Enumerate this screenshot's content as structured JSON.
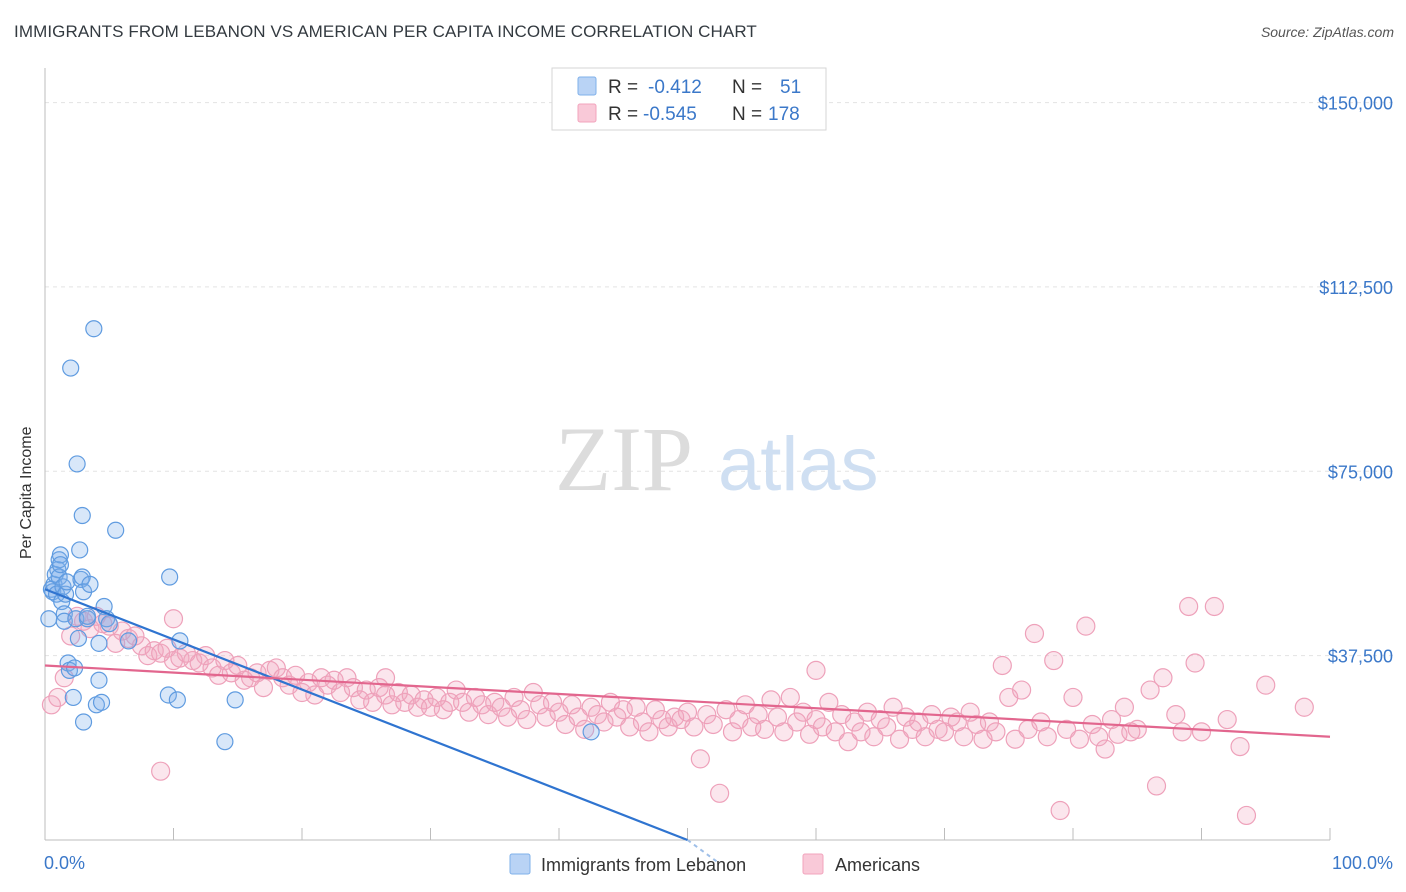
{
  "title": "IMMIGRANTS FROM LEBANON VS AMERICAN PER CAPITA INCOME CORRELATION CHART",
  "source": "Source: ZipAtlas.com",
  "watermark": {
    "zip": "ZIP",
    "atlas": "atlas"
  },
  "colors": {
    "blue": "#7fb0ea",
    "blue_line": "#2f74d0",
    "pink": "#f2a4bd",
    "pink_line": "#e2668e",
    "axis_text": "#3b78c9"
  },
  "legend_box": [
    {
      "r_label": "R =",
      "r_value": "-0.412",
      "n_label": "N =",
      "n_value": "51"
    },
    {
      "r_label": "R =",
      "r_value": "-0.545",
      "n_label": "N =",
      "n_value": "178"
    }
  ],
  "chart_data": {
    "type": "scatter",
    "title": "IMMIGRANTS FROM LEBANON VS AMERICAN PER CAPITA INCOME CORRELATION CHART",
    "xlabel": "",
    "ylabel": "Per Capita Income",
    "xlim": [
      0,
      100
    ],
    "ylim": [
      0,
      155000
    ],
    "x_tick_labels": [
      "0.0%",
      "100.0%"
    ],
    "y_ticks": [
      37500,
      75000,
      112500,
      150000
    ],
    "y_tick_labels": [
      "$37,500",
      "$75,000",
      "$112,500",
      "$150,000"
    ],
    "grid": true,
    "legend_position": "bottom",
    "series": [
      {
        "name": "Immigrants from Lebanon",
        "color": "#7fb0ea",
        "trend": {
          "x": [
            0,
            50
          ],
          "y": [
            51000,
            0
          ]
        },
        "points": [
          [
            0.3,
            45000
          ],
          [
            0.5,
            51000
          ],
          [
            0.6,
            50500
          ],
          [
            0.7,
            52000
          ],
          [
            0.8,
            54000
          ],
          [
            0.9,
            50000
          ],
          [
            1.0,
            55000
          ],
          [
            1.1,
            57000
          ],
          [
            1.1,
            53500
          ],
          [
            1.2,
            58000
          ],
          [
            1.2,
            56000
          ],
          [
            1.3,
            48500
          ],
          [
            1.4,
            51500
          ],
          [
            1.5,
            46000
          ],
          [
            1.5,
            44500
          ],
          [
            1.6,
            50000
          ],
          [
            1.7,
            52500
          ],
          [
            1.8,
            36000
          ],
          [
            1.9,
            34500
          ],
          [
            2.0,
            96000
          ],
          [
            2.2,
            29000
          ],
          [
            2.3,
            35000
          ],
          [
            2.4,
            45000
          ],
          [
            2.5,
            76500
          ],
          [
            2.6,
            41000
          ],
          [
            2.7,
            59000
          ],
          [
            2.8,
            53000
          ],
          [
            2.9,
            53500
          ],
          [
            2.9,
            66000
          ],
          [
            3.0,
            50500
          ],
          [
            3.3,
            45000
          ],
          [
            3.5,
            52000
          ],
          [
            3.0,
            24000
          ],
          [
            3.3,
            45500
          ],
          [
            3.8,
            104000
          ],
          [
            4.2,
            40000
          ],
          [
            4.0,
            27500
          ],
          [
            4.2,
            32500
          ],
          [
            4.4,
            28000
          ],
          [
            4.6,
            47500
          ],
          [
            4.8,
            45000
          ],
          [
            5.0,
            44000
          ],
          [
            5.5,
            63000
          ],
          [
            6.5,
            40500
          ],
          [
            9.7,
            53500
          ],
          [
            9.6,
            29500
          ],
          [
            10.5,
            40500
          ],
          [
            10.3,
            28500
          ],
          [
            14.0,
            20000
          ],
          [
            14.8,
            28500
          ],
          [
            42.5,
            22000
          ]
        ]
      },
      {
        "name": "Americans",
        "color": "#f2a4bd",
        "trend": {
          "x": [
            0,
            100
          ],
          "y": [
            35500,
            21000
          ]
        },
        "points": [
          [
            0.5,
            27500
          ],
          [
            1.0,
            29000
          ],
          [
            1.5,
            33000
          ],
          [
            2.0,
            41500
          ],
          [
            2.5,
            45500
          ],
          [
            3.0,
            44500
          ],
          [
            3.5,
            43000
          ],
          [
            4.0,
            45500
          ],
          [
            4.5,
            44000
          ],
          [
            5.0,
            43500
          ],
          [
            5.5,
            40000
          ],
          [
            6.0,
            42500
          ],
          [
            6.5,
            41000
          ],
          [
            7.0,
            41500
          ],
          [
            7.5,
            39500
          ],
          [
            8.0,
            37500
          ],
          [
            8.5,
            38500
          ],
          [
            9.0,
            38000
          ],
          [
            9.5,
            39000
          ],
          [
            10.0,
            36500
          ],
          [
            10.5,
            37000
          ],
          [
            11.0,
            38000
          ],
          [
            11.5,
            36500
          ],
          [
            12.0,
            36000
          ],
          [
            12.5,
            37500
          ],
          [
            13.0,
            35000
          ],
          [
            13.5,
            33500
          ],
          [
            14.0,
            36500
          ],
          [
            14.5,
            34000
          ],
          [
            15.0,
            35500
          ],
          [
            15.5,
            32500
          ],
          [
            16.0,
            33000
          ],
          [
            16.5,
            34000
          ],
          [
            17.0,
            31000
          ],
          [
            17.5,
            34500
          ],
          [
            18.0,
            35000
          ],
          [
            18.5,
            33000
          ],
          [
            19.0,
            31500
          ],
          [
            19.5,
            33500
          ],
          [
            20.0,
            30000
          ],
          [
            20.5,
            32000
          ],
          [
            21.0,
            29500
          ],
          [
            21.5,
            33000
          ],
          [
            22.0,
            31500
          ],
          [
            22.5,
            32500
          ],
          [
            23.0,
            30000
          ],
          [
            23.5,
            33000
          ],
          [
            24.0,
            31000
          ],
          [
            24.5,
            28500
          ],
          [
            25.0,
            30500
          ],
          [
            25.5,
            28000
          ],
          [
            26.0,
            31000
          ],
          [
            26.5,
            29500
          ],
          [
            27.0,
            27500
          ],
          [
            27.5,
            30000
          ],
          [
            28.0,
            28000
          ],
          [
            28.5,
            29500
          ],
          [
            29.0,
            27000
          ],
          [
            29.5,
            28500
          ],
          [
            30.0,
            27000
          ],
          [
            30.5,
            29000
          ],
          [
            31.0,
            26500
          ],
          [
            31.5,
            28000
          ],
          [
            32.0,
            30500
          ],
          [
            32.5,
            28000
          ],
          [
            33.0,
            26000
          ],
          [
            33.5,
            29000
          ],
          [
            34.0,
            27500
          ],
          [
            34.5,
            25500
          ],
          [
            35.0,
            28000
          ],
          [
            35.5,
            27000
          ],
          [
            36.0,
            25000
          ],
          [
            36.5,
            29000
          ],
          [
            37.0,
            26500
          ],
          [
            37.5,
            24500
          ],
          [
            38.0,
            30000
          ],
          [
            38.5,
            27500
          ],
          [
            39.0,
            25000
          ],
          [
            39.5,
            28000
          ],
          [
            40.0,
            26000
          ],
          [
            40.5,
            23500
          ],
          [
            41.0,
            27500
          ],
          [
            41.5,
            25000
          ],
          [
            42.0,
            22500
          ],
          [
            42.5,
            27000
          ],
          [
            43.0,
            25500
          ],
          [
            43.5,
            24000
          ],
          [
            44.0,
            28000
          ],
          [
            44.5,
            25000
          ],
          [
            45.0,
            26500
          ],
          [
            45.5,
            23000
          ],
          [
            46.0,
            27000
          ],
          [
            46.5,
            24000
          ],
          [
            47.0,
            22000
          ],
          [
            47.5,
            26500
          ],
          [
            48.0,
            24500
          ],
          [
            48.5,
            23000
          ],
          [
            49.0,
            25000
          ],
          [
            49.5,
            24500
          ],
          [
            50.0,
            26000
          ],
          [
            50.5,
            23000
          ],
          [
            51.0,
            16500
          ],
          [
            51.5,
            25500
          ],
          [
            52.0,
            23500
          ],
          [
            52.5,
            9500
          ],
          [
            53.0,
            26500
          ],
          [
            53.5,
            22000
          ],
          [
            54.0,
            24500
          ],
          [
            54.5,
            27500
          ],
          [
            55.0,
            23000
          ],
          [
            55.5,
            25500
          ],
          [
            56.0,
            22500
          ],
          [
            56.5,
            28500
          ],
          [
            57.0,
            25000
          ],
          [
            57.5,
            22000
          ],
          [
            58.0,
            29000
          ],
          [
            58.5,
            24000
          ],
          [
            59.0,
            26000
          ],
          [
            59.5,
            21500
          ],
          [
            60.0,
            24500
          ],
          [
            60.5,
            23000
          ],
          [
            61.0,
            28000
          ],
          [
            61.5,
            22000
          ],
          [
            62.0,
            25500
          ],
          [
            62.5,
            20000
          ],
          [
            63.0,
            24000
          ],
          [
            63.5,
            22000
          ],
          [
            64.0,
            26000
          ],
          [
            64.5,
            21000
          ],
          [
            65.0,
            24500
          ],
          [
            65.5,
            23000
          ],
          [
            66.0,
            27000
          ],
          [
            66.5,
            20500
          ],
          [
            67.0,
            25000
          ],
          [
            67.5,
            22500
          ],
          [
            68.0,
            24000
          ],
          [
            68.5,
            21000
          ],
          [
            69.0,
            25500
          ],
          [
            69.5,
            22500
          ],
          [
            70.0,
            22000
          ],
          [
            70.5,
            25000
          ],
          [
            71.0,
            24000
          ],
          [
            71.5,
            21000
          ],
          [
            72.0,
            26000
          ],
          [
            72.5,
            23500
          ],
          [
            73.0,
            20500
          ],
          [
            73.5,
            24000
          ],
          [
            74.0,
            22000
          ],
          [
            74.5,
            35500
          ],
          [
            75.0,
            29000
          ],
          [
            75.5,
            20500
          ],
          [
            76.0,
            30500
          ],
          [
            76.5,
            22500
          ],
          [
            77.0,
            42000
          ],
          [
            77.5,
            24000
          ],
          [
            78.0,
            21000
          ],
          [
            78.5,
            36500
          ],
          [
            79.0,
            6000
          ],
          [
            79.5,
            22500
          ],
          [
            80.0,
            29000
          ],
          [
            80.5,
            20500
          ],
          [
            81.0,
            43500
          ],
          [
            81.5,
            23500
          ],
          [
            82.0,
            21000
          ],
          [
            82.5,
            18500
          ],
          [
            83.0,
            24500
          ],
          [
            83.5,
            21500
          ],
          [
            84.0,
            27000
          ],
          [
            84.5,
            22000
          ],
          [
            85.0,
            22500
          ],
          [
            86.0,
            30500
          ],
          [
            86.5,
            11000
          ],
          [
            87.0,
            33000
          ],
          [
            88.0,
            25500
          ],
          [
            88.5,
            22000
          ],
          [
            89.0,
            47500
          ],
          [
            89.5,
            36000
          ],
          [
            90.0,
            22000
          ],
          [
            91.0,
            47500
          ],
          [
            92.0,
            24500
          ],
          [
            93.0,
            19000
          ],
          [
            93.5,
            5000
          ],
          [
            95.0,
            31500
          ],
          [
            98.0,
            27000
          ],
          [
            9.0,
            14000
          ],
          [
            10.0,
            45000
          ],
          [
            26.5,
            33000
          ],
          [
            60.0,
            34500
          ]
        ]
      }
    ]
  }
}
